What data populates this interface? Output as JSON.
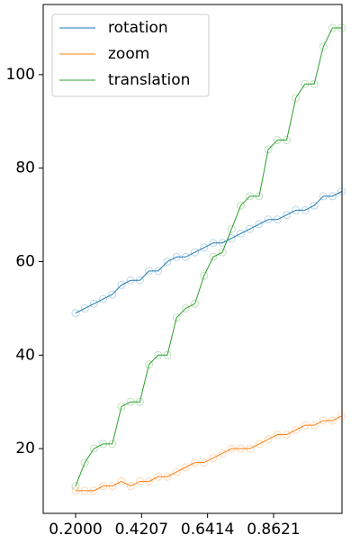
{
  "chart_data": {
    "type": "line",
    "markers": "hollow-circle",
    "x": [
      0.2,
      0.2307,
      0.2614,
      0.2921,
      0.3228,
      0.3534,
      0.3841,
      0.4148,
      0.4455,
      0.4762,
      0.5069,
      0.5376,
      0.5683,
      0.599,
      0.6297,
      0.6603,
      0.691,
      0.7217,
      0.7524,
      0.7831,
      0.8138,
      0.8445,
      0.8752,
      0.9059,
      0.9366,
      0.9672,
      0.9979,
      1.0286,
      1.0593,
      1.09
    ],
    "series": [
      {
        "name": "rotation",
        "color": "#1f77b4",
        "values": [
          49,
          50,
          51,
          52,
          53,
          55,
          56,
          56,
          58,
          58,
          60,
          61,
          61,
          62,
          63,
          64,
          64,
          65,
          66,
          67,
          68,
          69,
          69,
          70,
          71,
          71,
          72,
          74,
          74,
          75
        ]
      },
      {
        "name": "zoom",
        "color": "#ff7f0e",
        "values": [
          11,
          11,
          11,
          12,
          12,
          13,
          12,
          13,
          13,
          14,
          14,
          15,
          16,
          17,
          17,
          18,
          19,
          20,
          20,
          20,
          21,
          22,
          23,
          23,
          24,
          25,
          25,
          26,
          26,
          27
        ]
      },
      {
        "name": "translation",
        "color": "#2ca02c",
        "values": [
          12,
          17,
          20,
          21,
          21,
          29,
          30,
          30,
          38,
          40,
          40,
          48,
          50,
          51,
          57,
          61,
          62,
          67,
          72,
          74,
          74,
          84,
          86,
          86,
          95,
          98,
          98,
          106,
          110,
          110
        ]
      }
    ],
    "xlim": [
      0.0916,
      1.091
    ],
    "ylim": [
      6.15,
      115
    ],
    "xticks": [
      {
        "value": 0.2,
        "label": "0.2000"
      },
      {
        "value": 0.4207,
        "label": "0.4207"
      },
      {
        "value": 0.6414,
        "label": "0.6414"
      },
      {
        "value": 0.8621,
        "label": "0.8621"
      }
    ],
    "yticks": [
      20,
      40,
      60,
      80,
      100
    ],
    "legend": "upper-left"
  }
}
